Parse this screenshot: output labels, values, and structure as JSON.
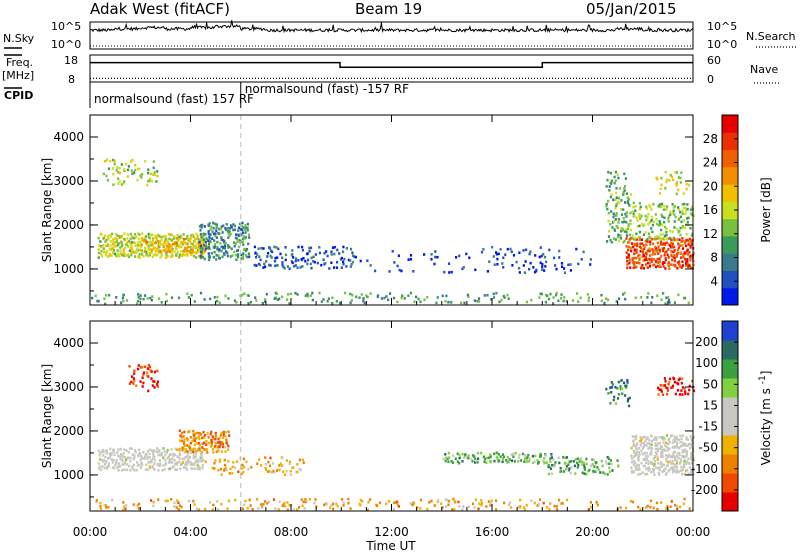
{
  "header": {
    "station": "Adak West (fitACF)",
    "beam": "Beam 19",
    "date": "05/Jan/2015"
  },
  "panel_labels": {
    "nsky": "N.Sky",
    "nsearch": "N.Search",
    "freq_top": "Freq.",
    "freq_unit": "[MHz]",
    "nave": "Nave",
    "cpid": "CPID",
    "cpid_seg1": "normalsound (fast) 157 RF",
    "cpid_seg2": "normalsound (fast) -157 RF"
  },
  "axis_ticks": {
    "noise_left_top": "10^5",
    "noise_left_bottom": "10^0",
    "noise_right_top": "10^5",
    "noise_right_bottom": "10^0",
    "freq_left_top": "18",
    "freq_left_bottom": "8",
    "freq_right_top": "60",
    "freq_right_bottom": "0"
  },
  "colors": {
    "power_scale": [
      "#0018e8",
      "#2050c0",
      "#3a7a8a",
      "#3a9a5a",
      "#78c040",
      "#c8e020",
      "#f0c000",
      "#f09000",
      "#f06000",
      "#e83000",
      "#e80000"
    ],
    "velocity_scale": [
      "#e80000",
      "#f04a00",
      "#f08000",
      "#f0b000",
      "#c8c8c0",
      "#c8c8c0",
      "#80d040",
      "#3aa040",
      "#2a6a60",
      "#2040d0"
    ],
    "gray_scatter": "#c8c8c0"
  },
  "chart_data": [
    {
      "type": "line",
      "name": "noise",
      "x_label": "",
      "x_range": [
        0,
        24
      ],
      "series": [
        {
          "name": "N.Sky",
          "style": "solid",
          "values": [
            0.5,
            0.55,
            0.6,
            0.55,
            0.6,
            0.65,
            0.55,
            0.5,
            0.5,
            0.5,
            0.5,
            0.5,
            0.5,
            0.5,
            0.5,
            0.5,
            0.5,
            0.5,
            0.5,
            0.5,
            0.5,
            0.55,
            0.5,
            0.5,
            0.6
          ]
        },
        {
          "name": "N.Search",
          "style": "dotted",
          "values": [
            0.1,
            0.1,
            0.1,
            0.1,
            0.1,
            0.1,
            0.1,
            0.1,
            0.1,
            0.1,
            0.1,
            0.1,
            0.1,
            0.1,
            0.1,
            0.1,
            0.1,
            0.1,
            0.1,
            0.1,
            0.1,
            0.1,
            0.1,
            0.1,
            0.1
          ]
        }
      ]
    },
    {
      "type": "line",
      "name": "frequency",
      "y_left_range": [
        8,
        18
      ],
      "y_right_range": [
        0,
        60
      ],
      "series": [
        {
          "name": "Freq",
          "style": "solid",
          "axis": "left",
          "points": [
            [
              0,
              15.2
            ],
            [
              9.95,
              15.2
            ],
            [
              9.95,
              13.5
            ],
            [
              18.0,
              13.5
            ],
            [
              18.0,
              15.2
            ],
            [
              24,
              15.2
            ]
          ]
        },
        {
          "name": "Nave",
          "style": "dotted",
          "axis": "right",
          "points": [
            [
              0,
              8
            ],
            [
              24,
              8
            ]
          ]
        }
      ],
      "cpid_changes": [
        {
          "start": 0,
          "end": 6.0,
          "label_key": "cpid_seg1"
        },
        {
          "start": 6.0,
          "end": 24,
          "label_key": "cpid_seg2"
        }
      ]
    },
    {
      "type": "heatmap",
      "name": "power",
      "ylabel": "Slant Range [km]",
      "ylim": [
        180,
        4500
      ],
      "yticks": [
        1000,
        2000,
        3000,
        4000
      ],
      "colorbar": {
        "label": "Power [dB]",
        "range": [
          0,
          32
        ],
        "ticks": [
          4,
          8,
          12,
          16,
          20,
          24,
          28
        ]
      },
      "regions": [
        {
          "t": [
            0.3,
            4.5
          ],
          "r": [
            1250,
            1800
          ],
          "level": 0.48,
          "density": 0.95
        },
        {
          "t": [
            2.0,
            4.7
          ],
          "r": [
            1350,
            1700
          ],
          "level": 0.62,
          "density": 0.6
        },
        {
          "t": [
            4.3,
            6.3
          ],
          "r": [
            1200,
            2050
          ],
          "level": 0.25,
          "density": 0.8
        },
        {
          "t": [
            0.5,
            2.7
          ],
          "r": [
            2900,
            3500
          ],
          "level": 0.45,
          "density": 0.3
        },
        {
          "t": [
            6.5,
            10.5
          ],
          "r": [
            1000,
            1500
          ],
          "level": 0.12,
          "density": 0.4
        },
        {
          "t": [
            10.5,
            15.5
          ],
          "r": [
            900,
            1400
          ],
          "level": 0.05,
          "density": 0.06
        },
        {
          "t": [
            15.5,
            20.0
          ],
          "r": [
            900,
            1500
          ],
          "level": 0.08,
          "density": 0.18
        },
        {
          "t": [
            20.5,
            21.5
          ],
          "r": [
            1600,
            3200
          ],
          "level": 0.35,
          "density": 0.4
        },
        {
          "t": [
            21.3,
            24.0
          ],
          "r": [
            1000,
            1700
          ],
          "level": 0.88,
          "density": 0.95
        },
        {
          "t": [
            21.5,
            24.0
          ],
          "r": [
            1650,
            2500
          ],
          "level": 0.4,
          "density": 0.5
        },
        {
          "t": [
            22.5,
            24.0
          ],
          "r": [
            2700,
            3200
          ],
          "level": 0.5,
          "density": 0.3
        },
        {
          "t": [
            0.0,
            24.0
          ],
          "r": [
            200,
            450
          ],
          "level": 0.3,
          "density": 0.2
        }
      ]
    },
    {
      "type": "heatmap",
      "name": "velocity",
      "ylabel": "Slant Range [km]",
      "ylim": [
        180,
        4500
      ],
      "yticks": [
        1000,
        2000,
        3000,
        4000
      ],
      "xlabel": "Time UT",
      "xticks": [
        "00:00",
        "04:00",
        "08:00",
        "12:00",
        "16:00",
        "20:00",
        "00:00"
      ],
      "colorbar": {
        "label": "Velocity [m s^-1]",
        "range": [
          -250,
          250
        ],
        "ticks": [
          -200,
          -100,
          -50,
          -15,
          15,
          50,
          100,
          200
        ]
      },
      "regions": [
        {
          "t": [
            0.3,
            4.5
          ],
          "r": [
            1100,
            1600
          ],
          "level": 0.5,
          "density": 0.9,
          "gray": true
        },
        {
          "t": [
            3.5,
            5.5
          ],
          "r": [
            1500,
            2000
          ],
          "level": 0.25,
          "density": 0.85
        },
        {
          "t": [
            4.5,
            8.5
          ],
          "r": [
            1000,
            1400
          ],
          "level": 0.3,
          "density": 0.3
        },
        {
          "t": [
            1.5,
            2.7
          ],
          "r": [
            2900,
            3500
          ],
          "level": 0.08,
          "density": 0.4
        },
        {
          "t": [
            14.0,
            18.5
          ],
          "r": [
            1250,
            1500
          ],
          "level": 0.72,
          "density": 0.6
        },
        {
          "t": [
            18.0,
            21.0
          ],
          "r": [
            1000,
            1400
          ],
          "level": 0.72,
          "density": 0.5
        },
        {
          "t": [
            21.5,
            24.0
          ],
          "r": [
            1000,
            1900
          ],
          "level": 0.5,
          "density": 0.95,
          "gray": true
        },
        {
          "t": [
            20.5,
            21.5
          ],
          "r": [
            2500,
            3200
          ],
          "level": 0.85,
          "density": 0.3
        },
        {
          "t": [
            22.5,
            24.0
          ],
          "r": [
            2800,
            3200
          ],
          "level": 0.05,
          "density": 0.4
        },
        {
          "t": [
            0.0,
            24.0
          ],
          "r": [
            200,
            450
          ],
          "level": 0.3,
          "density": 0.2
        }
      ]
    }
  ]
}
